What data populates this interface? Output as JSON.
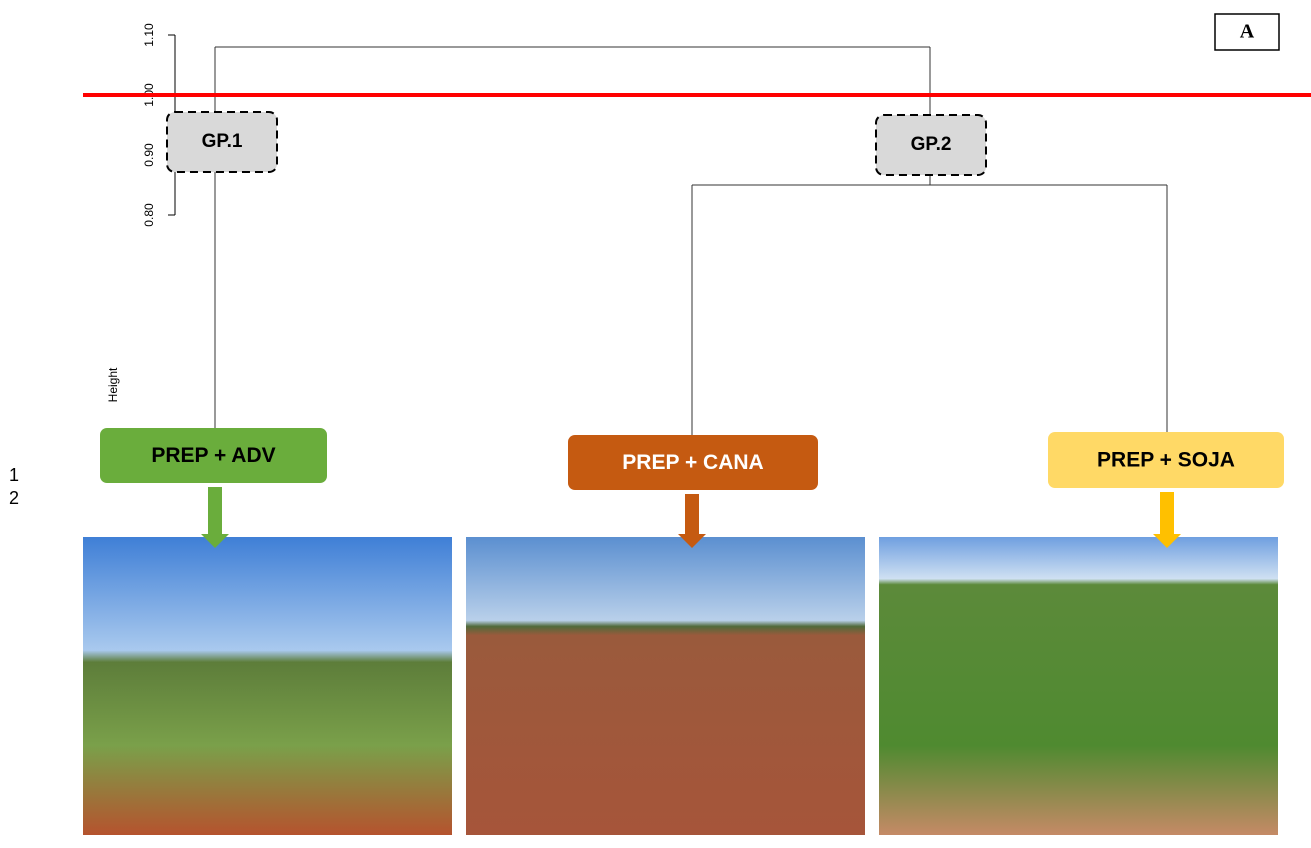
{
  "chart_data": {
    "type": "dendrogram",
    "panel_label": "A",
    "ylabel": "Height",
    "ylim": [
      0.8,
      1.1
    ],
    "yticks": [
      {
        "value": 0.8,
        "label": "0.80"
      },
      {
        "value": 0.9,
        "label": "0.90"
      },
      {
        "value": 1.0,
        "label": "1.00"
      },
      {
        "value": 1.1,
        "label": "1.10"
      }
    ],
    "merge_heights": [
      1.08,
      0.85
    ],
    "cut_height": 1.0,
    "cut_color": "#ff0000",
    "groups": [
      "GP.1",
      "GP.2"
    ],
    "categories": [
      "PREP + ADV",
      "PREP + CANA",
      "PREP + SOJA"
    ],
    "leaf_colors": [
      "#6aad3c",
      "#c55a11",
      "#ffd966"
    ],
    "arrow_colors": [
      "#6aad3c",
      "#c55a11",
      "#ffc000"
    ],
    "line_numbers": [
      "1",
      "2"
    ]
  }
}
